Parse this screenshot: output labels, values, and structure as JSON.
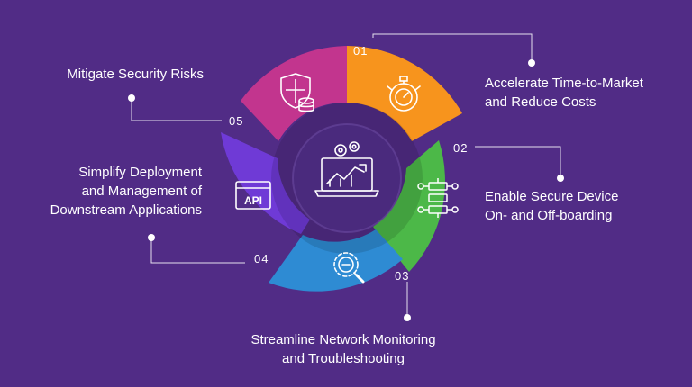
{
  "colors": {
    "background": "#512c86",
    "segment_01": "#f7941d",
    "segment_02": "#4cb848",
    "segment_03": "#2e8bd3",
    "segment_04": "#6f3ad6",
    "segment_05": "#c2358e",
    "center": "#4a2a7d",
    "connector": "#ffffff"
  },
  "segments": [
    {
      "number": "01",
      "label_line1": "Accelerate Time-to-Market",
      "label_line2": "and Reduce Costs",
      "icon": "stopwatch-gear-icon"
    },
    {
      "number": "02",
      "label_line1": "Enable Secure Device",
      "label_line2": "On- and Off-boarding",
      "icon": "network-nodes-icon"
    },
    {
      "number": "03",
      "label_line1": "Streamline Network Monitoring",
      "label_line2": "and Troubleshooting",
      "icon": "magnifier-gear-icon"
    },
    {
      "number": "04",
      "label_line1": "Simplify Deployment",
      "label_line2": "and Management of",
      "label_line3": "Downstream Applications",
      "icon": "api-window-icon",
      "icon_text": "API"
    },
    {
      "number": "05",
      "label_line1": "Mitigate Security Risks",
      "icon": "shield-database-icon"
    }
  ],
  "center_icon": "laptop-analytics-icon"
}
